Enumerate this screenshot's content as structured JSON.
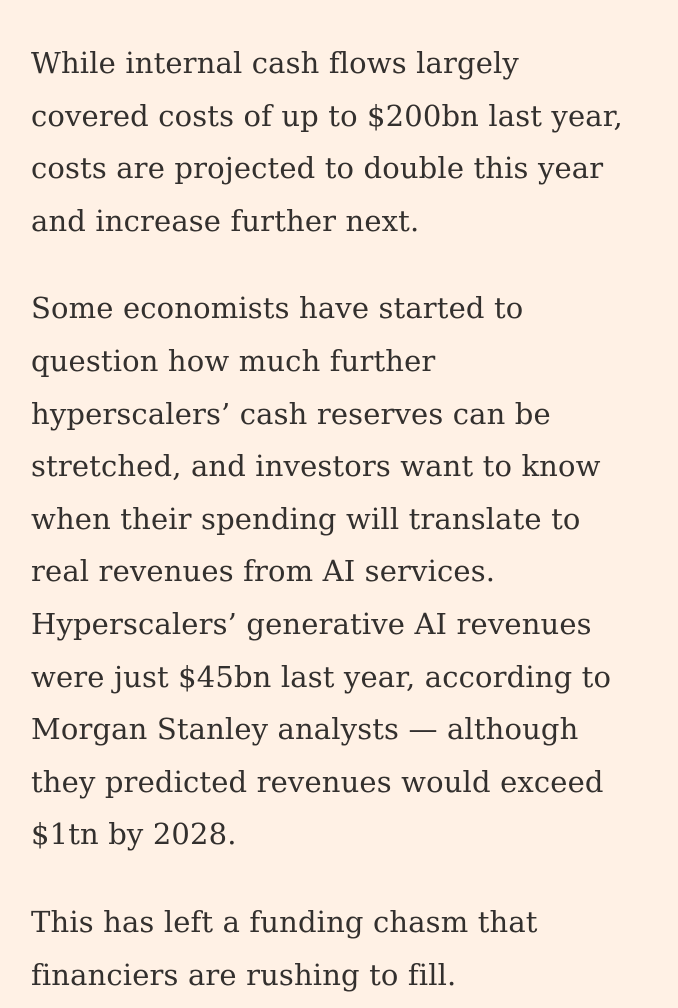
{
  "article": {
    "paragraphs": [
      {
        "lines": [
          "While internal cash flows largely",
          "covered costs of up to $200bn last year,",
          "costs are projected to double this year",
          "and increase further next."
        ]
      },
      {
        "lines": [
          "Some economists have started to",
          "question how much further",
          "hyperscalers’ cash reserves can be",
          "stretched, and investors want to know",
          "when their spending will translate to",
          "real revenues from AI services.",
          "Hyperscalers’ generative AI revenues",
          "were just $45bn last year, according to",
          "Morgan Stanley analysts — although",
          "they predicted revenues would exceed",
          "$1tn by 2028."
        ]
      },
      {
        "lines": [
          "This has left a funding chasm that",
          "financiers are rushing to fill."
        ]
      }
    ]
  }
}
